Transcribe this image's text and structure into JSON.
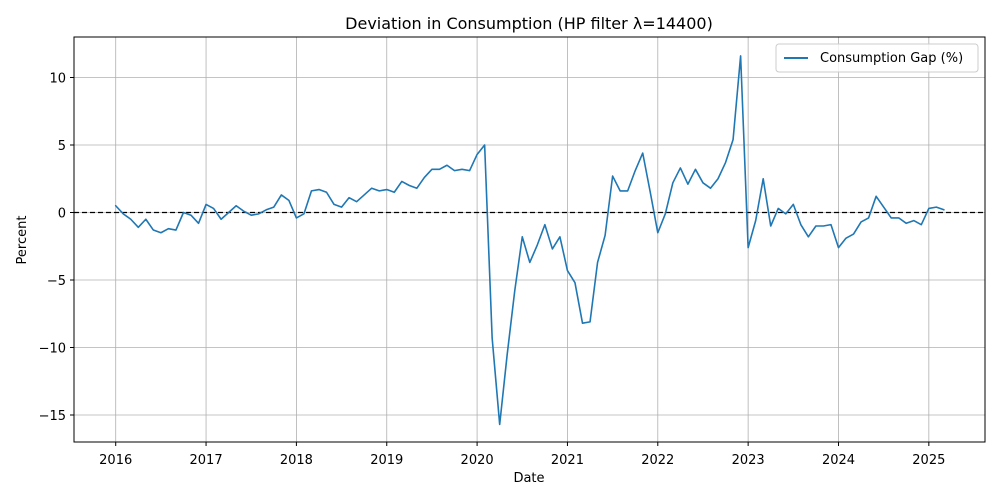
{
  "chart_data": {
    "type": "line",
    "title": "Deviation in Consumption (HP filter λ=14400)",
    "xlabel": "Date",
    "ylabel": "Percent",
    "xlim": [
      "2015-07-15",
      "2025-08-15"
    ],
    "ylim": [
      -17,
      13
    ],
    "grid": true,
    "legend_position": "top-right",
    "x_ticks": [
      "2016",
      "2017",
      "2018",
      "2019",
      "2020",
      "2021",
      "2022",
      "2023",
      "2024",
      "2025"
    ],
    "y_ticks": [
      -15,
      -10,
      -5,
      0,
      5,
      10
    ],
    "reference_line": {
      "y": 0,
      "style": "dashed",
      "color": "#000000"
    },
    "series": [
      {
        "name": "Consumption Gap (%)",
        "color": "#1f77b4",
        "x": [
          "2016-01",
          "2016-02",
          "2016-03",
          "2016-04",
          "2016-05",
          "2016-06",
          "2016-07",
          "2016-08",
          "2016-09",
          "2016-10",
          "2016-11",
          "2016-12",
          "2017-01",
          "2017-02",
          "2017-03",
          "2017-04",
          "2017-05",
          "2017-06",
          "2017-07",
          "2017-08",
          "2017-09",
          "2017-10",
          "2017-11",
          "2017-12",
          "2018-01",
          "2018-02",
          "2018-03",
          "2018-04",
          "2018-05",
          "2018-06",
          "2018-07",
          "2018-08",
          "2018-09",
          "2018-10",
          "2018-11",
          "2018-12",
          "2019-01",
          "2019-02",
          "2019-03",
          "2019-04",
          "2019-05",
          "2019-06",
          "2019-07",
          "2019-08",
          "2019-09",
          "2019-10",
          "2019-11",
          "2019-12",
          "2020-01",
          "2020-02",
          "2020-03",
          "2020-04",
          "2020-05",
          "2020-06",
          "2020-07",
          "2020-08",
          "2020-09",
          "2020-10",
          "2020-11",
          "2020-12",
          "2021-01",
          "2021-02",
          "2021-03",
          "2021-04",
          "2021-05",
          "2021-06",
          "2021-07",
          "2021-08",
          "2021-09",
          "2021-10",
          "2021-11",
          "2021-12",
          "2022-01",
          "2022-02",
          "2022-03",
          "2022-04",
          "2022-05",
          "2022-06",
          "2022-07",
          "2022-08",
          "2022-09",
          "2022-10",
          "2022-11",
          "2022-12",
          "2023-01",
          "2023-02",
          "2023-03",
          "2023-04",
          "2023-05",
          "2023-06",
          "2023-07",
          "2023-08",
          "2023-09",
          "2023-10",
          "2023-11",
          "2023-12",
          "2024-01",
          "2024-02",
          "2024-03",
          "2024-04",
          "2024-05",
          "2024-06",
          "2024-07",
          "2024-08",
          "2024-09",
          "2024-10",
          "2024-11",
          "2024-12",
          "2025-01",
          "2025-02",
          "2025-03"
        ],
        "y": [
          0.5,
          -0.1,
          -0.5,
          -1.1,
          -0.5,
          -1.3,
          -1.5,
          -1.2,
          -1.3,
          0.0,
          -0.2,
          -0.8,
          0.6,
          0.3,
          -0.5,
          0.0,
          0.5,
          0.1,
          -0.2,
          -0.1,
          0.2,
          0.4,
          1.3,
          0.9,
          -0.4,
          -0.1,
          1.6,
          1.7,
          1.5,
          0.6,
          0.4,
          1.1,
          0.8,
          1.3,
          1.8,
          1.6,
          1.7,
          1.5,
          2.3,
          2.0,
          1.8,
          2.6,
          3.2,
          3.2,
          3.5,
          3.1,
          3.2,
          3.1,
          4.3,
          5.0,
          -9.3,
          -15.7,
          -10.5,
          -5.8,
          -1.8,
          -3.7,
          -2.4,
          -0.9,
          -2.7,
          -1.8,
          -4.3,
          -5.2,
          -8.2,
          -8.1,
          -3.7,
          -1.7,
          2.7,
          1.6,
          1.6,
          3.1,
          4.4,
          1.5,
          -1.5,
          -0.1,
          2.2,
          3.3,
          2.1,
          3.2,
          2.2,
          1.8,
          2.5,
          3.7,
          5.4,
          11.6,
          -2.6,
          -0.6,
          2.5,
          -1.0,
          0.3,
          -0.1,
          0.6,
          -0.9,
          -1.8,
          -1.0,
          -1.0,
          -0.9,
          -2.6,
          -1.9,
          -1.6,
          -0.7,
          -0.4,
          1.2,
          0.4,
          -0.4,
          -0.4,
          -0.8,
          -0.6,
          -0.9,
          0.3,
          0.4,
          0.2
        ]
      }
    ]
  }
}
